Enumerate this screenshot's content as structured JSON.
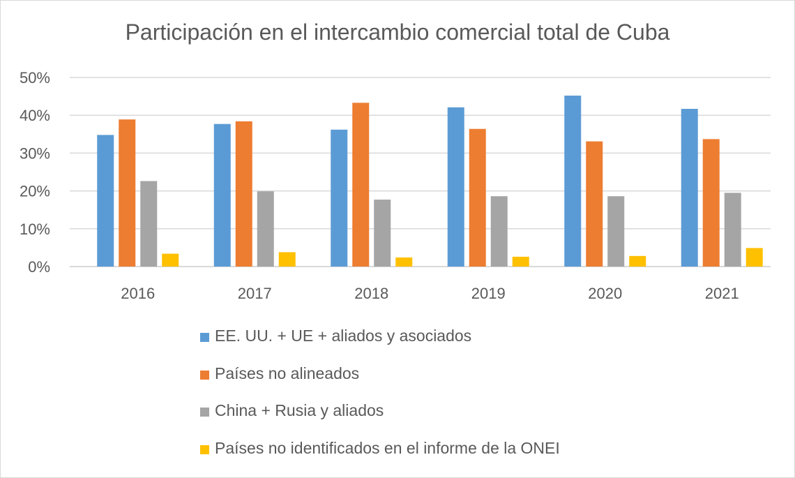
{
  "chart_data": {
    "type": "bar",
    "title": "Participación en el intercambio comercial total de Cuba",
    "categories": [
      "2016",
      "2017",
      "2018",
      "2019",
      "2020",
      "2021"
    ],
    "ylim": [
      0,
      50
    ],
    "yticks": [
      "0%",
      "10%",
      "20%",
      "30%",
      "40%",
      "50%"
    ],
    "grid": true,
    "legend_position": "bottom",
    "series": [
      {
        "name": "EE. UU. + UE + aliados y asociados",
        "color": "#5B9BD5",
        "values": [
          34.8,
          37.7,
          36.2,
          42.1,
          45.2,
          41.7
        ]
      },
      {
        "name": "Países no alineados",
        "color": "#ED7D31",
        "values": [
          38.9,
          38.4,
          43.3,
          36.4,
          33.1,
          33.7
        ]
      },
      {
        "name": "China + Rusia y aliados",
        "color": "#A5A5A5",
        "values": [
          22.6,
          19.9,
          17.7,
          18.6,
          18.6,
          19.5
        ]
      },
      {
        "name": "Países no identificados en el informe de la ONEI",
        "color": "#FFC000",
        "values": [
          3.4,
          3.8,
          2.4,
          2.6,
          2.8,
          4.9
        ]
      }
    ]
  }
}
